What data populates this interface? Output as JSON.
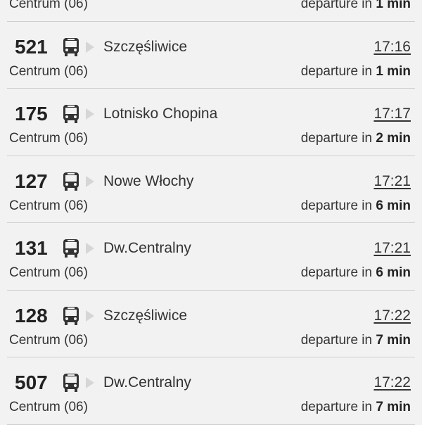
{
  "departures": [
    {
      "line": "",
      "destination": "",
      "time": "",
      "stop": "Centrum (06)",
      "prefix": "departure in",
      "minutes": "1 min"
    },
    {
      "line": "521",
      "destination": "Szczęśliwice",
      "time": "17:16",
      "stop": "Centrum (06)",
      "prefix": "departure in",
      "minutes": "1 min"
    },
    {
      "line": "175",
      "destination": "Lotnisko Chopina",
      "time": "17:17",
      "stop": "Centrum (06)",
      "prefix": "departure in",
      "minutes": "2 min"
    },
    {
      "line": "127",
      "destination": "Nowe Włochy",
      "time": "17:21",
      "stop": "Centrum (06)",
      "prefix": "departure in",
      "minutes": "6 min"
    },
    {
      "line": "131",
      "destination": "Dw.Centralny",
      "time": "17:21",
      "stop": "Centrum (06)",
      "prefix": "departure in",
      "minutes": "6 min"
    },
    {
      "line": "128",
      "destination": "Szczęśliwice",
      "time": "17:22",
      "stop": "Centrum (06)",
      "prefix": "departure in",
      "minutes": "7 min"
    },
    {
      "line": "507",
      "destination": "Dw.Centralny",
      "time": "17:22",
      "stop": "Centrum (06)",
      "prefix": "departure in",
      "minutes": "7 min"
    }
  ],
  "icons": {
    "vehicle": "bus-icon",
    "direction": "arrow-right-icon"
  }
}
